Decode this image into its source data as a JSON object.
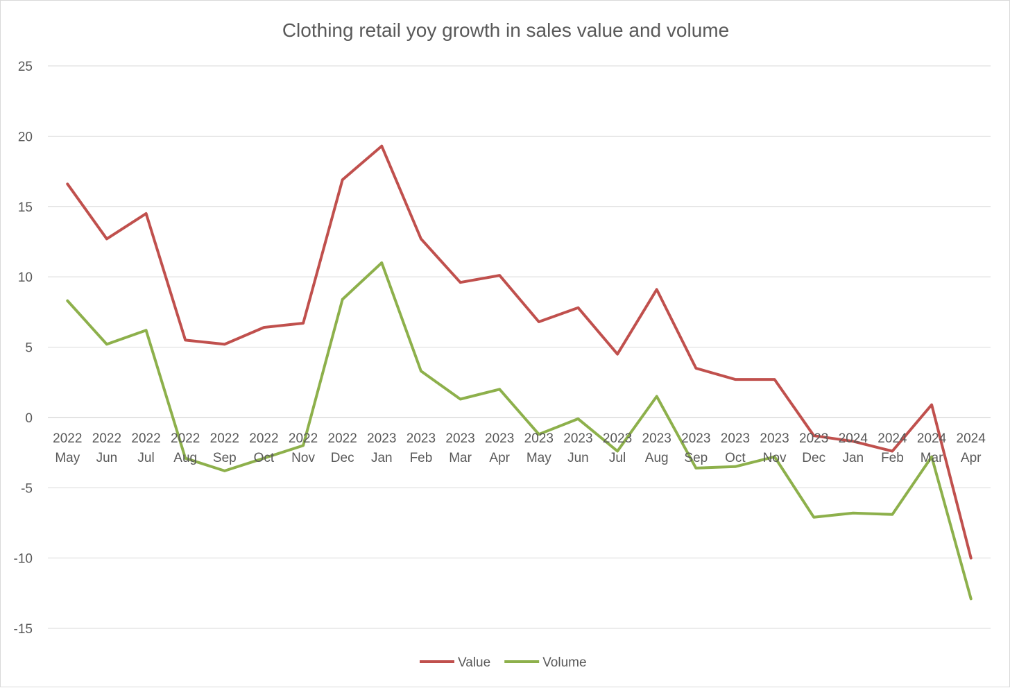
{
  "chart_data": {
    "type": "line",
    "title": "Clothing retail yoy growth in sales value and volume",
    "xlabel": "",
    "ylabel": "",
    "ylim": [
      -15,
      25
    ],
    "yticks": [
      -15,
      -10,
      -5,
      0,
      5,
      10,
      15,
      20,
      25
    ],
    "ytick_labels": [
      "-15",
      "-10",
      "-5",
      "0",
      "5",
      "10",
      "15",
      "20",
      "25"
    ],
    "grid": true,
    "legend_position": "bottom",
    "categories": [
      {
        "year": "2022",
        "month": "May"
      },
      {
        "year": "2022",
        "month": "Jun"
      },
      {
        "year": "2022",
        "month": "Jul"
      },
      {
        "year": "2022",
        "month": "Aug"
      },
      {
        "year": "2022",
        "month": "Sep"
      },
      {
        "year": "2022",
        "month": "Oct"
      },
      {
        "year": "2022",
        "month": "Nov"
      },
      {
        "year": "2022",
        "month": "Dec"
      },
      {
        "year": "2023",
        "month": "Jan"
      },
      {
        "year": "2023",
        "month": "Feb"
      },
      {
        "year": "2023",
        "month": "Mar"
      },
      {
        "year": "2023",
        "month": "Apr"
      },
      {
        "year": "2023",
        "month": "May"
      },
      {
        "year": "2023",
        "month": "Jun"
      },
      {
        "year": "2023",
        "month": "Jul"
      },
      {
        "year": "2023",
        "month": "Aug"
      },
      {
        "year": "2023",
        "month": "Sep"
      },
      {
        "year": "2023",
        "month": "Oct"
      },
      {
        "year": "2023",
        "month": "Nov"
      },
      {
        "year": "2023",
        "month": "Dec"
      },
      {
        "year": "2024",
        "month": "Jan"
      },
      {
        "year": "2024",
        "month": "Feb"
      },
      {
        "year": "2024",
        "month": "Mar"
      },
      {
        "year": "2024",
        "month": "Apr"
      }
    ],
    "series": [
      {
        "name": "Value",
        "color": "#c0504d",
        "values": [
          16.6,
          12.7,
          14.5,
          5.5,
          5.2,
          6.4,
          6.7,
          16.9,
          19.3,
          12.7,
          9.6,
          10.1,
          6.8,
          7.8,
          4.5,
          9.1,
          3.5,
          2.7,
          2.7,
          -1.3,
          -1.7,
          -2.4,
          0.9,
          -10.0
        ]
      },
      {
        "name": "Volume",
        "color": "#8db04b",
        "values": [
          8.3,
          5.2,
          6.2,
          -2.9,
          -3.8,
          -2.9,
          -2.0,
          8.4,
          11.0,
          3.3,
          1.3,
          2.0,
          -1.2,
          -0.1,
          -2.4,
          1.5,
          -3.6,
          -3.5,
          -2.8,
          -7.1,
          -6.8,
          -6.9,
          -2.8,
          -12.9
        ]
      }
    ]
  }
}
